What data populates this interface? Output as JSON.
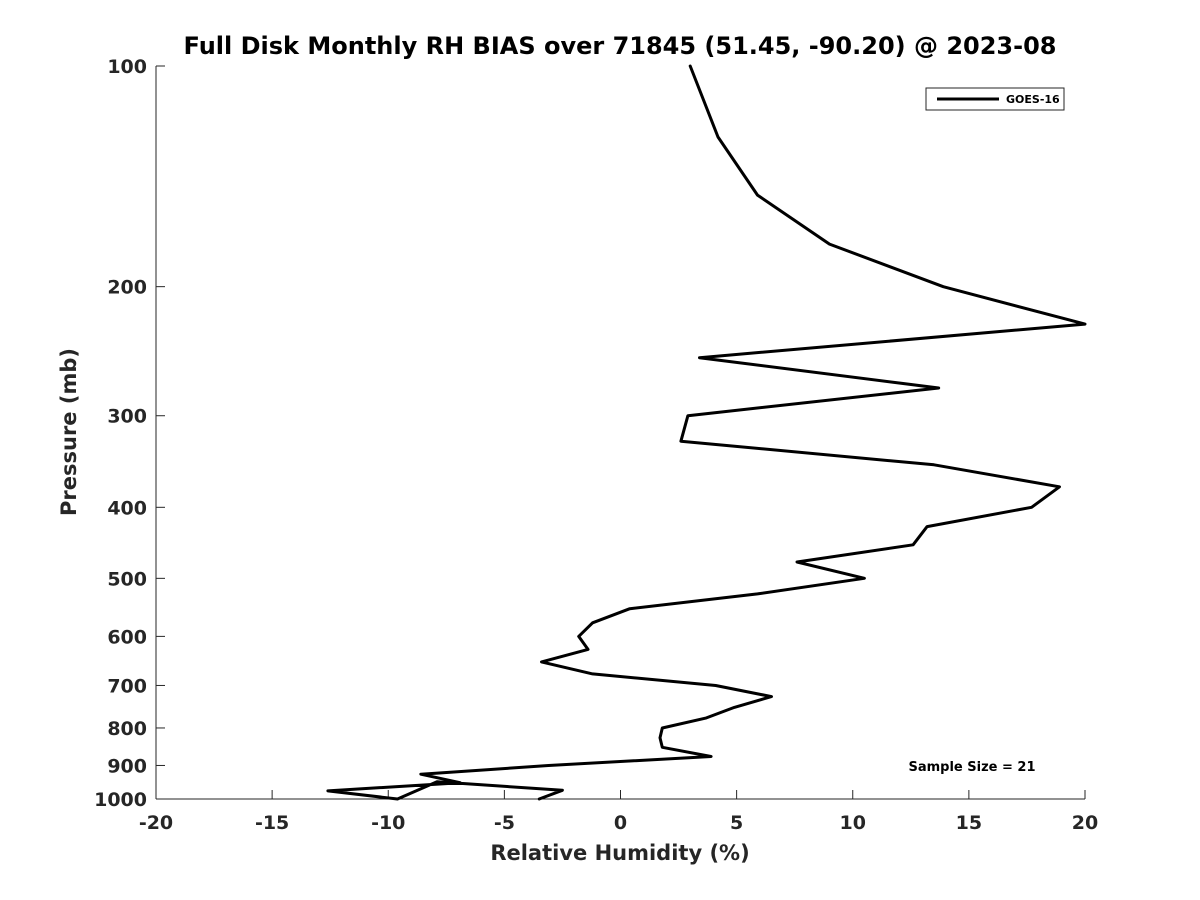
{
  "chart_data": {
    "type": "line",
    "title": "Full Disk Monthly RH BIAS over 71845 (51.45, -90.20) @ 2023-08",
    "xlabel": "Relative Humidity (%)",
    "ylabel": "Pressure (mb)",
    "xlim": [
      -20,
      20
    ],
    "ylim": [
      100,
      1000
    ],
    "y_scale": "log",
    "y_reversed": true,
    "grid": false,
    "legend_position": "top-right",
    "x_ticks": [
      -20,
      -15,
      -10,
      -5,
      0,
      5,
      10,
      15,
      20
    ],
    "x_tick_labels": [
      "-20",
      "-15",
      "-10",
      "-5",
      "0",
      "5",
      "10",
      "15",
      "20"
    ],
    "y_ticks": [
      100,
      200,
      300,
      400,
      500,
      600,
      700,
      800,
      900,
      1000
    ],
    "y_tick_labels": [
      "100",
      "200",
      "300",
      "400",
      "500",
      "600",
      "700",
      "800",
      "900",
      "1000"
    ],
    "series": [
      {
        "name": "GOES-16",
        "color": "#000000",
        "points": [
          {
            "x": 3.0,
            "y": 100
          },
          {
            "x": 4.2,
            "y": 125
          },
          {
            "x": 5.9,
            "y": 150
          },
          {
            "x": 9.0,
            "y": 175
          },
          {
            "x": 13.9,
            "y": 200
          },
          {
            "x": 20.0,
            "y": 225
          },
          {
            "x": 3.4,
            "y": 250
          },
          {
            "x": 13.7,
            "y": 275
          },
          {
            "x": 2.9,
            "y": 300
          },
          {
            "x": 2.6,
            "y": 325
          },
          {
            "x": 13.5,
            "y": 350
          },
          {
            "x": 18.9,
            "y": 375
          },
          {
            "x": 17.7,
            "y": 400
          },
          {
            "x": 13.2,
            "y": 425
          },
          {
            "x": 12.6,
            "y": 450
          },
          {
            "x": 7.6,
            "y": 475
          },
          {
            "x": 10.5,
            "y": 500
          },
          {
            "x": 5.9,
            "y": 525
          },
          {
            "x": 0.4,
            "y": 550
          },
          {
            "x": -1.2,
            "y": 575
          },
          {
            "x": -1.8,
            "y": 600
          },
          {
            "x": -1.4,
            "y": 625
          },
          {
            "x": -3.4,
            "y": 650
          },
          {
            "x": -1.2,
            "y": 675
          },
          {
            "x": 4.1,
            "y": 700
          },
          {
            "x": 6.5,
            "y": 725
          },
          {
            "x": 4.9,
            "y": 750
          },
          {
            "x": 3.7,
            "y": 775
          },
          {
            "x": 1.8,
            "y": 800
          },
          {
            "x": 1.7,
            "y": 825
          },
          {
            "x": 1.8,
            "y": 850
          },
          {
            "x": 3.9,
            "y": 875
          },
          {
            "x": -3.1,
            "y": 900
          },
          {
            "x": -8.6,
            "y": 925
          },
          {
            "x": -6.9,
            "y": 950
          },
          {
            "x": -12.6,
            "y": 975
          },
          {
            "x": -9.6,
            "y": 1000
          },
          {
            "x": -7.9,
            "y": 1025
          },
          {
            "x": -2.5,
            "y": 1050
          },
          {
            "x": -3.5,
            "y": 1075
          }
        ]
      }
    ],
    "annotation": "Sample Size = 21"
  }
}
